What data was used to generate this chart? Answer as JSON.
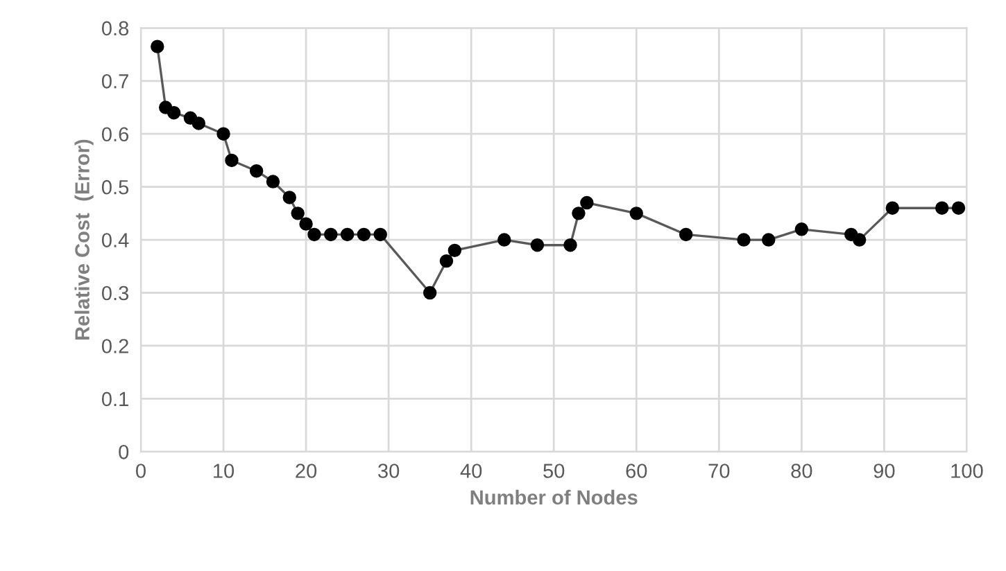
{
  "chart_data": {
    "type": "line",
    "xlabel": "Number of Nodes",
    "ylabel": "Relative Cost  (Error)",
    "series": [
      {
        "color": "#000000",
        "x": [
          2,
          3,
          4,
          6,
          7,
          10,
          11,
          14,
          16,
          18,
          19,
          20,
          21,
          23,
          25,
          27,
          29,
          35,
          37,
          38,
          44,
          48,
          52,
          53,
          54,
          60,
          66,
          73,
          76,
          80,
          86,
          87,
          91,
          97,
          99
        ],
        "values": [
          0.765,
          0.65,
          0.64,
          0.63,
          0.62,
          0.6,
          0.55,
          0.53,
          0.51,
          0.48,
          0.45,
          0.43,
          0.41,
          0.41,
          0.41,
          0.41,
          0.41,
          0.3,
          0.36,
          0.38,
          0.4,
          0.39,
          0.39,
          0.45,
          0.47,
          0.45,
          0.41,
          0.4,
          0.4,
          0.42,
          0.41,
          0.4,
          0.46,
          0.46,
          0.46
        ]
      }
    ],
    "xlim": [
      0,
      100
    ],
    "xticks": [
      0,
      10,
      20,
      30,
      40,
      50,
      60,
      70,
      80,
      90,
      100
    ],
    "ylim": [
      0,
      0.8
    ],
    "yticks": [
      0,
      0.1,
      0.2,
      0.3,
      0.4,
      0.5,
      0.6,
      0.7,
      0.8
    ],
    "grid": true,
    "marker": "circle",
    "line_style": "solid"
  }
}
